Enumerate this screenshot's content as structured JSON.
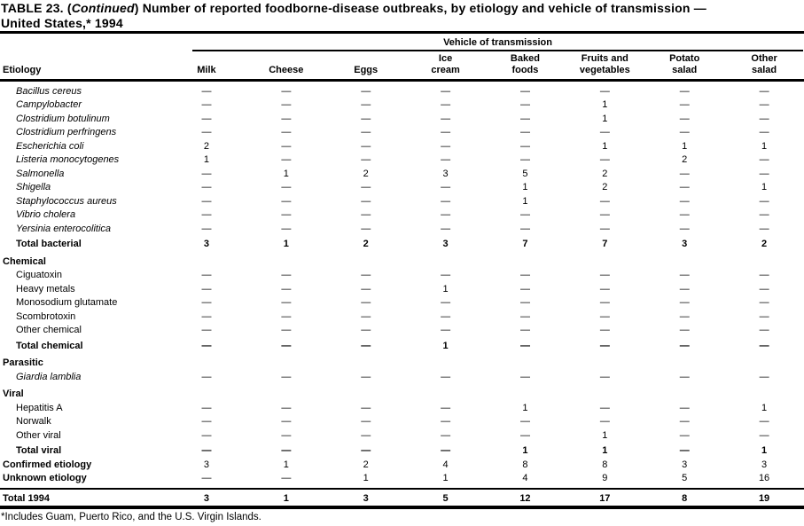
{
  "title": {
    "line1_prefix": "TABLE 23. (",
    "line1_italic": "Continued",
    "line1_suffix": ") Number of reported foodborne-disease outbreaks, by etiology and vehicle of transmission —",
    "line2": "United States,* 1994"
  },
  "table": {
    "spanner_label": "Vehicle of transmission",
    "etiology_header": "Etiology",
    "columns": [
      {
        "line1": "",
        "line2": "Milk"
      },
      {
        "line1": "",
        "line2": "Cheese"
      },
      {
        "line1": "",
        "line2": "Eggs"
      },
      {
        "line1": "Ice",
        "line2": "cream"
      },
      {
        "line1": "Baked",
        "line2": "foods"
      },
      {
        "line1": "Fruits and",
        "line2": "vegetables"
      },
      {
        "line1": "Potato",
        "line2": "salad"
      },
      {
        "line1": "Other",
        "line2": "salad"
      }
    ],
    "rows": [
      {
        "type": "species",
        "label": "Bacillus cereus",
        "values": [
          "—",
          "—",
          "—",
          "—",
          "—",
          "—",
          "—",
          "—"
        ]
      },
      {
        "type": "species",
        "label": "Campylobacter",
        "values": [
          "—",
          "—",
          "—",
          "—",
          "—",
          "1",
          "—",
          "—"
        ]
      },
      {
        "type": "species",
        "label": "Clostridium botulinum",
        "values": [
          "—",
          "—",
          "—",
          "—",
          "—",
          "1",
          "—",
          "—"
        ]
      },
      {
        "type": "species",
        "label": "Clostridium perfringens",
        "values": [
          "—",
          "—",
          "—",
          "—",
          "—",
          "—",
          "—",
          "—"
        ]
      },
      {
        "type": "species",
        "label": "Escherichia coli",
        "values": [
          "2",
          "—",
          "—",
          "—",
          "—",
          "1",
          "1",
          "1"
        ]
      },
      {
        "type": "species",
        "label": "Listeria monocytogenes",
        "values": [
          "1",
          "—",
          "—",
          "—",
          "—",
          "—",
          "2",
          "—"
        ]
      },
      {
        "type": "species",
        "label": "Salmonella",
        "values": [
          "—",
          "1",
          "2",
          "3",
          "5",
          "2",
          "—",
          "—"
        ]
      },
      {
        "type": "species",
        "label": "Shigella",
        "values": [
          "—",
          "—",
          "—",
          "—",
          "1",
          "2",
          "—",
          "1"
        ]
      },
      {
        "type": "species",
        "label": "Staphylococcus aureus",
        "values": [
          "—",
          "—",
          "—",
          "—",
          "1",
          "—",
          "—",
          "—"
        ]
      },
      {
        "type": "species",
        "label": "Vibrio cholera",
        "values": [
          "—",
          "—",
          "—",
          "—",
          "—",
          "—",
          "—",
          "—"
        ]
      },
      {
        "type": "species",
        "label": "Yersinia enterocolitica",
        "values": [
          "—",
          "—",
          "—",
          "—",
          "—",
          "—",
          "—",
          "—"
        ]
      },
      {
        "type": "total",
        "label": "Total bacterial",
        "values": [
          "3",
          "1",
          "2",
          "3",
          "7",
          "7",
          "3",
          "2"
        ]
      },
      {
        "type": "section",
        "label": "Chemical"
      },
      {
        "type": "item",
        "label": "Ciguatoxin",
        "values": [
          "—",
          "—",
          "—",
          "—",
          "—",
          "—",
          "—",
          "—"
        ]
      },
      {
        "type": "item",
        "label": "Heavy metals",
        "values": [
          "—",
          "—",
          "—",
          "1",
          "—",
          "—",
          "—",
          "—"
        ]
      },
      {
        "type": "item",
        "label": "Monosodium glutamate",
        "values": [
          "—",
          "—",
          "—",
          "—",
          "—",
          "—",
          "—",
          "—"
        ]
      },
      {
        "type": "item",
        "label": "Scombrotoxin",
        "values": [
          "—",
          "—",
          "—",
          "—",
          "—",
          "—",
          "—",
          "—"
        ]
      },
      {
        "type": "item",
        "label": "Other chemical",
        "values": [
          "—",
          "—",
          "—",
          "—",
          "—",
          "—",
          "—",
          "—"
        ]
      },
      {
        "type": "total",
        "label": "Total chemical",
        "values": [
          "—",
          "—",
          "—",
          "1",
          "—",
          "—",
          "—",
          "—"
        ]
      },
      {
        "type": "section",
        "label": "Parasitic"
      },
      {
        "type": "species",
        "label": "Giardia lamblia",
        "values": [
          "—",
          "—",
          "—",
          "—",
          "—",
          "—",
          "—",
          "—"
        ]
      },
      {
        "type": "section",
        "label": "Viral"
      },
      {
        "type": "item",
        "label": "Hepatitis A",
        "values": [
          "—",
          "—",
          "—",
          "—",
          "1",
          "—",
          "—",
          "1"
        ]
      },
      {
        "type": "item",
        "label": "Norwalk",
        "values": [
          "—",
          "—",
          "—",
          "—",
          "—",
          "—",
          "—",
          "—"
        ]
      },
      {
        "type": "item",
        "label": "Other viral",
        "values": [
          "—",
          "—",
          "—",
          "—",
          "—",
          "1",
          "—",
          "—"
        ]
      },
      {
        "type": "total",
        "label": "Total viral",
        "values": [
          "—",
          "—",
          "—",
          "—",
          "1",
          "1",
          "—",
          "1"
        ]
      },
      {
        "type": "summary",
        "label": "Confirmed etiology",
        "values": [
          "3",
          "1",
          "2",
          "4",
          "8",
          "8",
          "3",
          "3"
        ]
      },
      {
        "type": "summary",
        "label": "Unknown etiology",
        "values": [
          "—",
          "—",
          "1",
          "1",
          "4",
          "9",
          "5",
          "16"
        ]
      },
      {
        "type": "grand",
        "label": "Total 1994",
        "values": [
          "3",
          "1",
          "3",
          "5",
          "12",
          "17",
          "8",
          "19"
        ]
      }
    ]
  },
  "footnote": "*Includes Guam, Puerto Rico, and the U.S. Virgin Islands."
}
